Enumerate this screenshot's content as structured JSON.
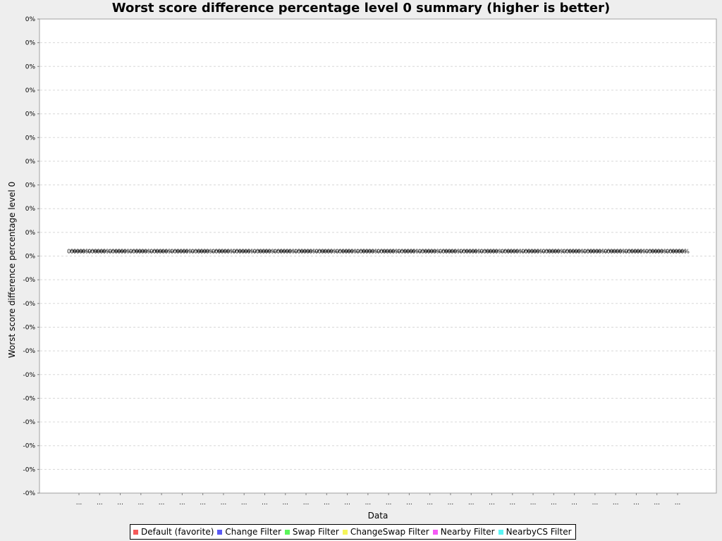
{
  "chart_data": {
    "type": "bar",
    "title": "Worst score difference percentage level 0 summary (higher is better)",
    "xlabel": "Data",
    "ylabel": "Worst score difference percentage level 0",
    "y_tick_labels": [
      "0%",
      "0%",
      "0%",
      "0%",
      "0%",
      "0%",
      "0%",
      "0%",
      "0%",
      "0%",
      "0%",
      "-0%",
      "-0%",
      "-0%",
      "-0%",
      "-0%",
      "-0%",
      "-0%",
      "-0%",
      "-0%",
      "-0%"
    ],
    "categories": [
      "...",
      "...",
      "...",
      "...",
      "...",
      "...",
      "...",
      "...",
      "...",
      "...",
      "...",
      "...",
      "...",
      "...",
      "...",
      "...",
      "...",
      "...",
      "...",
      "...",
      "...",
      "...",
      "...",
      "...",
      "...",
      "...",
      "...",
      "...",
      "...",
      "..."
    ],
    "value_label": "0%",
    "ylim": [
      -1,
      1
    ],
    "grid": true,
    "legend_position": "bottom",
    "series": [
      {
        "name": "Default (favorite)",
        "color": "#f55a5a",
        "values": [
          0,
          0,
          0,
          0,
          0,
          0,
          0,
          0,
          0,
          0,
          0,
          0,
          0,
          0,
          0,
          0,
          0,
          0,
          0,
          0,
          0,
          0,
          0,
          0,
          0,
          0,
          0,
          0,
          0,
          0
        ]
      },
      {
        "name": "Change Filter",
        "color": "#5a5af5",
        "values": [
          0,
          0,
          0,
          0,
          0,
          0,
          0,
          0,
          0,
          0,
          0,
          0,
          0,
          0,
          0,
          0,
          0,
          0,
          0,
          0,
          0,
          0,
          0,
          0,
          0,
          0,
          0,
          0,
          0,
          0
        ]
      },
      {
        "name": "Swap Filter",
        "color": "#5af55a",
        "values": [
          0,
          0,
          0,
          0,
          0,
          0,
          0,
          0,
          0,
          0,
          0,
          0,
          0,
          0,
          0,
          0,
          0,
          0,
          0,
          0,
          0,
          0,
          0,
          0,
          0,
          0,
          0,
          0,
          0,
          0
        ]
      },
      {
        "name": "ChangeSwap Filter",
        "color": "#f5f55a",
        "values": [
          0,
          0,
          0,
          0,
          0,
          0,
          0,
          0,
          0,
          0,
          0,
          0,
          0,
          0,
          0,
          0,
          0,
          0,
          0,
          0,
          0,
          0,
          0,
          0,
          0,
          0,
          0,
          0,
          0,
          0
        ]
      },
      {
        "name": "Nearby Filter",
        "color": "#f55af5",
        "values": [
          0,
          0,
          0,
          0,
          0,
          0,
          0,
          0,
          0,
          0,
          0,
          0,
          0,
          0,
          0,
          0,
          0,
          0,
          0,
          0,
          0,
          0,
          0,
          0,
          0,
          0,
          0,
          0,
          0,
          0
        ]
      },
      {
        "name": "NearbyCS Filter",
        "color": "#5af5f5",
        "values": [
          0,
          0,
          0,
          0,
          0,
          0,
          0,
          0,
          0,
          0,
          0,
          0,
          0,
          0,
          0,
          0,
          0,
          0,
          0,
          0,
          0,
          0,
          0,
          0,
          0,
          0,
          0,
          0,
          0,
          0
        ]
      }
    ]
  }
}
